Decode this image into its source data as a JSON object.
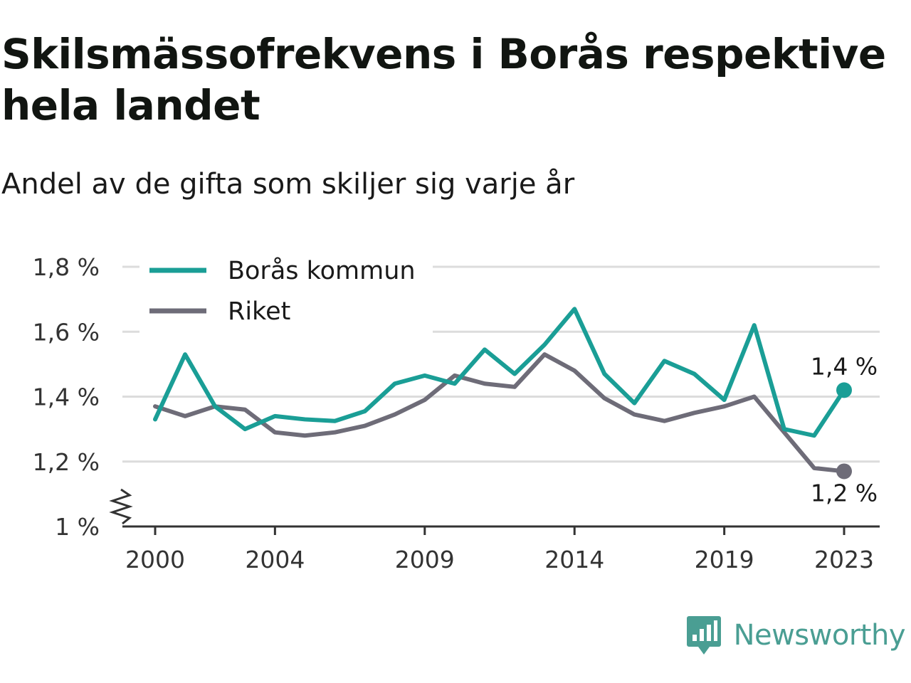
{
  "header": {
    "title": "Skilsmässofrekvens i Borås respektive hela landet",
    "subtitle": "Andel av de gifta som skiljer sig varje år"
  },
  "brand": {
    "name": "Newsworthy",
    "icon": "newsworthy-logo-icon",
    "color": "#4a9e93"
  },
  "chart_data": {
    "type": "line",
    "x": [
      2000,
      2001,
      2002,
      2003,
      2004,
      2005,
      2006,
      2007,
      2008,
      2009,
      2010,
      2011,
      2012,
      2013,
      2014,
      2015,
      2016,
      2017,
      2018,
      2019,
      2020,
      2021,
      2022,
      2023
    ],
    "x_ticks": [
      2000,
      2004,
      2009,
      2014,
      2019,
      2023
    ],
    "x_tick_labels": [
      "2000",
      "2004",
      "2009",
      "2014",
      "2019",
      "2023"
    ],
    "ylim": [
      1.0,
      1.8
    ],
    "y_ticks": [
      1.0,
      1.2,
      1.4,
      1.6,
      1.8
    ],
    "y_tick_labels": [
      "1 %",
      "1,2 %",
      "1,4 %",
      "1,6 %",
      "1,8 %"
    ],
    "y_axis_break": true,
    "grid": true,
    "legend_position": "top-left",
    "series": [
      {
        "name": "Borås kommun",
        "color": "#1a9e96",
        "values": [
          1.33,
          1.53,
          1.37,
          1.3,
          1.34,
          1.33,
          1.325,
          1.355,
          1.44,
          1.465,
          1.44,
          1.545,
          1.47,
          1.56,
          1.67,
          1.47,
          1.38,
          1.51,
          1.47,
          1.39,
          1.62,
          1.3,
          1.28,
          1.42
        ],
        "end_label": "1,4 %"
      },
      {
        "name": "Riket",
        "color": "#6e6c78",
        "values": [
          1.37,
          1.34,
          1.37,
          1.36,
          1.29,
          1.28,
          1.29,
          1.31,
          1.345,
          1.39,
          1.465,
          1.44,
          1.43,
          1.53,
          1.48,
          1.395,
          1.345,
          1.325,
          1.35,
          1.37,
          1.4,
          1.29,
          1.18,
          1.17
        ],
        "end_label": "1,2 %"
      }
    ]
  }
}
